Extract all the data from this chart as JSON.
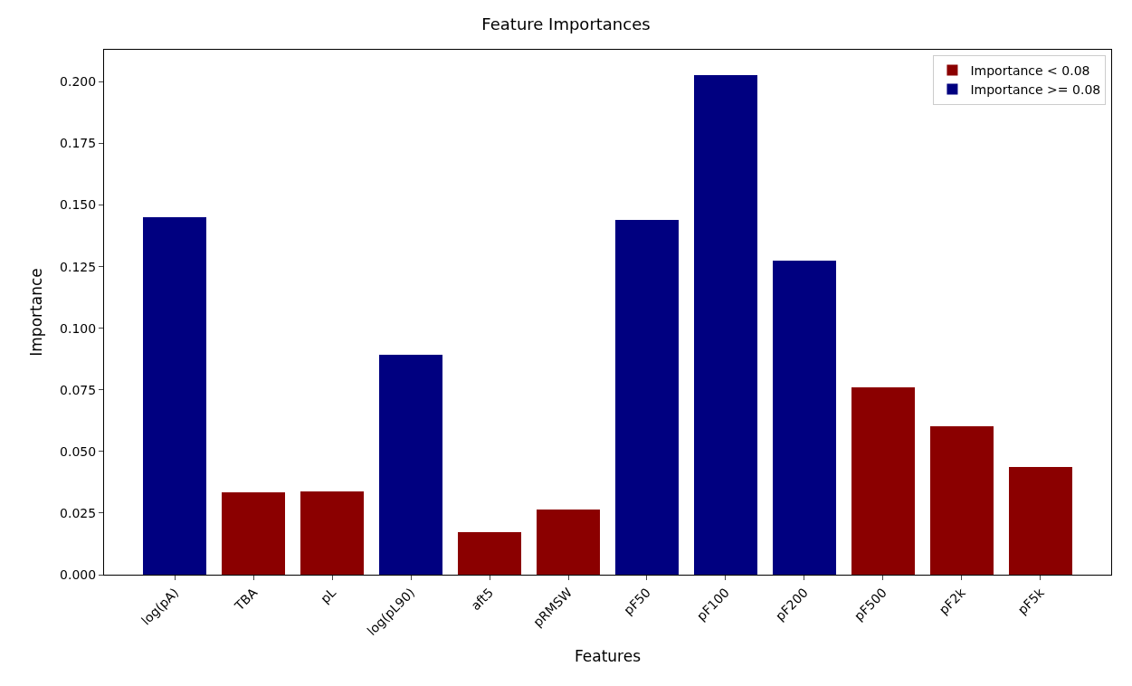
{
  "chart_data": {
    "type": "bar",
    "title": "Feature Importances",
    "xlabel": "Features",
    "ylabel": "Importance",
    "categories": [
      "log(pA)",
      "TBA",
      "pL",
      "log(pL90)",
      "aft5",
      "pRMSW",
      "pF50",
      "pF100",
      "pF200",
      "pF500",
      "pF2k",
      "pF5k"
    ],
    "series": [
      {
        "name": "Importance < 0.08",
        "color": "#8b0000",
        "values": [
          null,
          0.0335,
          0.0338,
          null,
          0.0173,
          0.0265,
          null,
          null,
          null,
          0.0761,
          0.0603,
          0.0438
        ]
      },
      {
        "name": "Importance >= 0.08",
        "color": "#000080",
        "values": [
          0.1449,
          null,
          null,
          0.0893,
          null,
          null,
          0.1438,
          0.2029,
          0.1276,
          null,
          null,
          null
        ]
      }
    ],
    "stacked": true,
    "ylim": [
      0,
      0.213
    ],
    "yticks": [
      {
        "value": 0,
        "label": "0.000"
      },
      {
        "value": 0.025,
        "label": "0.025"
      },
      {
        "value": 0.05,
        "label": "0.050"
      },
      {
        "value": 0.075,
        "label": "0.075"
      },
      {
        "value": 0.1,
        "label": "0.100"
      },
      {
        "value": 0.125,
        "label": "0.125"
      },
      {
        "value": 0.15,
        "label": "0.150"
      },
      {
        "value": 0.175,
        "label": "0.175"
      },
      {
        "value": 0.2,
        "label": "0.200"
      }
    ],
    "legend": "top right"
  }
}
